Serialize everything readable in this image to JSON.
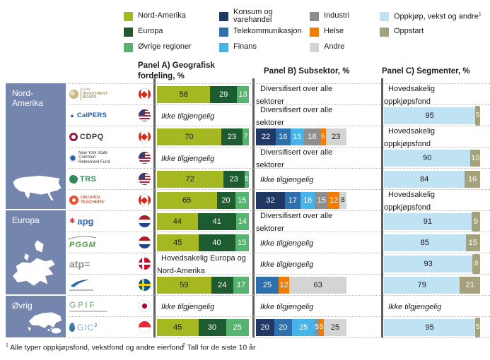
{
  "colors": {
    "Nord-Amerika": "#a6b821",
    "Europa": "#1d5c30",
    "Øvrige regioner": "#55b56e",
    "Konsum og varehandel": "#1f3864",
    "Telekommunikasjon": "#2e6fad",
    "Finans": "#45b4e8",
    "Industri": "#8e8e8e",
    "Helse": "#f07c00",
    "Andre": "#d4d4d4",
    "Oppkjøp, vekst og andre": "#c0e3f4",
    "Oppstart": "#a5a17c",
    "sidebar": "#7486ae"
  },
  "legend": {
    "columns": [
      [
        {
          "label": "Nord-Amerika"
        },
        {
          "label": "Europa"
        },
        {
          "label": "Øvrige regioner"
        }
      ],
      [
        {
          "label": "Konsum og varehandel",
          "wrap": true
        },
        {
          "label": "Telekommunikasjon"
        },
        {
          "label": "Finans"
        }
      ],
      [
        {
          "label": "Industri"
        },
        {
          "label": "Helse"
        },
        {
          "label": "Andre"
        }
      ],
      [
        {
          "label": "Oppkjøp, vekst og andre",
          "sup": "1"
        },
        {
          "label": "Oppstart"
        }
      ]
    ]
  },
  "sidebar": {
    "sections": [
      {
        "label": "Nord-Amerika",
        "map": "north-america",
        "rows": 6
      },
      {
        "label": "Europa",
        "map": "europe",
        "rows": 4
      },
      {
        "label": "Øvrig",
        "map": "other-regions",
        "rows": 2
      }
    ]
  },
  "chart_data": {
    "type": "table",
    "panels": [
      {
        "key": "panel_a",
        "title": "Panel A) Geografisk fordeling, %"
      },
      {
        "key": "panel_b",
        "title": "Panel B) Subsektor, %"
      },
      {
        "key": "panel_c",
        "title": "Panel C) Segmenter, %"
      }
    ],
    "funds": [
      {
        "id": "cpp",
        "logo_style": "cpp",
        "logo_text": "CPP INVESTMENT BOARD",
        "flag": "canada",
        "region": "Nord-Amerika",
        "panel_a": {
          "type": "stacked_bar",
          "segments": [
            {
              "label": "Nord-Amerika",
              "value": 58
            },
            {
              "label": "Europa",
              "value": 29
            },
            {
              "label": "Øvrige regioner",
              "value": 13
            }
          ]
        },
        "panel_b": {
          "type": "text",
          "text": "Diversifisert over alle sektorer",
          "italic": false
        },
        "panel_c": {
          "type": "text",
          "text": "Hovedsakelig oppkjøpsfond",
          "italic": false
        }
      },
      {
        "id": "calpers",
        "logo_style": "calpers",
        "logo_text": "CalPERS",
        "flag": "usa",
        "region": "Nord-Amerika",
        "panel_a": {
          "type": "text",
          "text": "Ikke tilgjengelig",
          "italic": true
        },
        "panel_b": {
          "type": "text",
          "text": "Diversifisert over alle sektorer",
          "italic": false
        },
        "panel_c": {
          "type": "stacked_bar",
          "segments": [
            {
              "label": "Oppkjøp, vekst og andre",
              "value": 95
            },
            {
              "label": "Oppstart",
              "value": 5
            }
          ]
        }
      },
      {
        "id": "cdpq",
        "logo_style": "cdpq",
        "logo_text": "CDPQ",
        "flag": "canada",
        "region": "Nord-Amerika",
        "panel_a": {
          "type": "stacked_bar",
          "segments": [
            {
              "label": "Nord-Amerika",
              "value": 70
            },
            {
              "label": "Europa",
              "value": 23
            },
            {
              "label": "Øvrige regioner",
              "value": 7
            }
          ]
        },
        "panel_b": {
          "type": "stacked_bar",
          "segments": [
            {
              "label": "Konsum og varehandel",
              "value": 22
            },
            {
              "label": "Telekommunikasjon",
              "value": 16
            },
            {
              "label": "Finans",
              "value": 15
            },
            {
              "label": "Industri",
              "value": 18
            },
            {
              "label": "Helse",
              "value": 6
            },
            {
              "label": "Andre",
              "value": 23
            }
          ]
        },
        "panel_c": {
          "type": "text",
          "text": "Hovedsakelig oppkjøpsfond",
          "italic": false
        }
      },
      {
        "id": "nystate",
        "logo_style": "nystate",
        "logo_lines": [
          "New York State",
          "Common",
          "Retirement Fund"
        ],
        "flag": "usa",
        "region": "Nord-Amerika",
        "panel_a": {
          "type": "text",
          "text": "Ikke tilgjengelig",
          "italic": true
        },
        "panel_b": {
          "type": "text",
          "text": "Diversifisert over alle sektorer",
          "italic": false
        },
        "panel_c": {
          "type": "stacked_bar",
          "segments": [
            {
              "label": "Oppkjøp, vekst og andre",
              "value": 90
            },
            {
              "label": "Oppstart",
              "value": 10
            }
          ]
        }
      },
      {
        "id": "trs",
        "logo_style": "trs",
        "logo_text": "TRS",
        "flag": "usa",
        "region": "Nord-Amerika",
        "panel_a": {
          "type": "stacked_bar",
          "segments": [
            {
              "label": "Nord-Amerika",
              "value": 72
            },
            {
              "label": "Europa",
              "value": 23
            },
            {
              "label": "Øvrige regioner",
              "value": 5
            }
          ]
        },
        "panel_b": {
          "type": "text",
          "text": "Ikke tilgjengelig",
          "italic": true
        },
        "panel_c": {
          "type": "stacked_bar",
          "segments": [
            {
              "label": "Oppkjøp, vekst og andre",
              "value": 84
            },
            {
              "label": "Oppstart",
              "value": 16
            }
          ]
        }
      },
      {
        "id": "ontario-teachers",
        "logo_style": "ontario",
        "logo_text": "ONTARIO TEACHERS'",
        "flag": "canada",
        "region": "Nord-Amerika",
        "panel_a": {
          "type": "stacked_bar",
          "segments": [
            {
              "label": "Nord-Amerika",
              "value": 65
            },
            {
              "label": "Europa",
              "value": 20
            },
            {
              "label": "Øvrige regioner",
              "value": 15
            }
          ]
        },
        "panel_b": {
          "type": "stacked_bar",
          "segments": [
            {
              "label": "Konsum og varehandel",
              "value": 32
            },
            {
              "label": "Telekommunikasjon",
              "value": 17
            },
            {
              "label": "Finans",
              "value": 16
            },
            {
              "label": "Industri",
              "value": 15
            },
            {
              "label": "Helse",
              "value": 12
            },
            {
              "label": "Andre",
              "value": 8
            }
          ]
        },
        "panel_c": {
          "type": "text",
          "text": "Hovedsakelig oppkjøpsfond",
          "italic": false
        }
      },
      {
        "id": "apg",
        "logo_style": "apg",
        "logo_text": "apg",
        "flag": "netherlands",
        "region": "Europa",
        "panel_a": {
          "type": "stacked_bar",
          "segments": [
            {
              "label": "Nord-Amerika",
              "value": 44
            },
            {
              "label": "Europa",
              "value": 41
            },
            {
              "label": "Øvrige regioner",
              "value": 14
            }
          ]
        },
        "panel_b": {
          "type": "text",
          "text": "Diversifisert over alle sektorer",
          "italic": false
        },
        "panel_c": {
          "type": "stacked_bar",
          "segments": [
            {
              "label": "Oppkjøp, vekst og andre",
              "value": 91
            },
            {
              "label": "Oppstart",
              "value": 9
            }
          ]
        }
      },
      {
        "id": "pggm",
        "logo_style": "pggm",
        "logo_text": "PGGM",
        "flag": "netherlands",
        "region": "Europa",
        "panel_a": {
          "type": "stacked_bar",
          "segments": [
            {
              "label": "Nord-Amerika",
              "value": 45
            },
            {
              "label": "Europa",
              "value": 40
            },
            {
              "label": "Øvrige regioner",
              "value": 15
            }
          ]
        },
        "panel_b": {
          "type": "text",
          "text": "Ikke tilgjengelig",
          "italic": true
        },
        "panel_c": {
          "type": "stacked_bar",
          "segments": [
            {
              "label": "Oppkjøp, vekst og andre",
              "value": 85
            },
            {
              "label": "Oppstart",
              "value": 15
            }
          ]
        }
      },
      {
        "id": "atp",
        "logo_style": "atp",
        "logo_text": "atp=",
        "flag": "denmark",
        "region": "Europa",
        "panel_a": {
          "type": "text",
          "text": "Hovedsakelig Europa og Nord-Amerika",
          "italic": false
        },
        "panel_b": {
          "type": "text",
          "text": "Ikke tilgjengelig",
          "italic": true
        },
        "panel_c": {
          "type": "stacked_bar",
          "segments": [
            {
              "label": "Oppkjøp, vekst og andre",
              "value": 93
            },
            {
              "label": "Oppstart",
              "value": 8
            }
          ]
        }
      },
      {
        "id": "swedish-fund",
        "logo_style": "swoosh",
        "logo_text": "",
        "flag": "sweden",
        "region": "Europa",
        "panel_a": {
          "type": "stacked_bar",
          "segments": [
            {
              "label": "Nord-Amerika",
              "value": 59
            },
            {
              "label": "Europa",
              "value": 24
            },
            {
              "label": "Øvrige regioner",
              "value": 17
            }
          ]
        },
        "panel_b": {
          "type": "stacked_bar",
          "segments": [
            {
              "label": "Telekommunikasjon",
              "value": 25
            },
            {
              "label": "Helse",
              "value": 12
            },
            {
              "label": "Andre",
              "value": 63
            }
          ]
        },
        "panel_c": {
          "type": "stacked_bar",
          "segments": [
            {
              "label": "Oppkjøp, vekst og andre",
              "value": 79
            },
            {
              "label": "Oppstart",
              "value": 21
            }
          ]
        }
      },
      {
        "id": "gpif",
        "logo_style": "gpif",
        "logo_text": "GPIF",
        "flag": "japan",
        "region": "Øvrig",
        "panel_a": {
          "type": "text",
          "text": "Ikke tilgjengelig",
          "italic": true
        },
        "panel_b": {
          "type": "text",
          "text": "Ikke tilgjengelig",
          "italic": true
        },
        "panel_c": {
          "type": "text",
          "text": "Ikke tilgjengelig",
          "italic": true
        }
      },
      {
        "id": "gic",
        "logo_style": "gic",
        "logo_text": "GIC",
        "logo_sup": "2",
        "flag": "singapore",
        "region": "Øvrig",
        "panel_a": {
          "type": "stacked_bar",
          "segments": [
            {
              "label": "Nord-Amerika",
              "value": 45
            },
            {
              "label": "Europa",
              "value": 30
            },
            {
              "label": "Øvrige regioner",
              "value": 25
            }
          ]
        },
        "panel_b": {
          "type": "stacked_bar",
          "segments": [
            {
              "label": "Konsum og varehandel",
              "value": 20
            },
            {
              "label": "Telekommunikasjon",
              "value": 20
            },
            {
              "label": "Finans",
              "value": 25
            },
            {
              "label": "Industri",
              "value": 5
            },
            {
              "label": "Helse",
              "value": 5
            },
            {
              "label": "Andre",
              "value": 25
            }
          ]
        },
        "panel_c": {
          "type": "stacked_bar",
          "segments": [
            {
              "label": "Oppkjøp, vekst og andre",
              "value": 95
            },
            {
              "label": "Oppstart",
              "value": 5
            }
          ]
        }
      }
    ]
  },
  "footnotes": [
    {
      "marker": "1",
      "text": "Alle typer oppkjøpsfond, vekstfond og andre eierfond"
    },
    {
      "marker": "2",
      "text": "Tall for de siste 10 år"
    }
  ]
}
